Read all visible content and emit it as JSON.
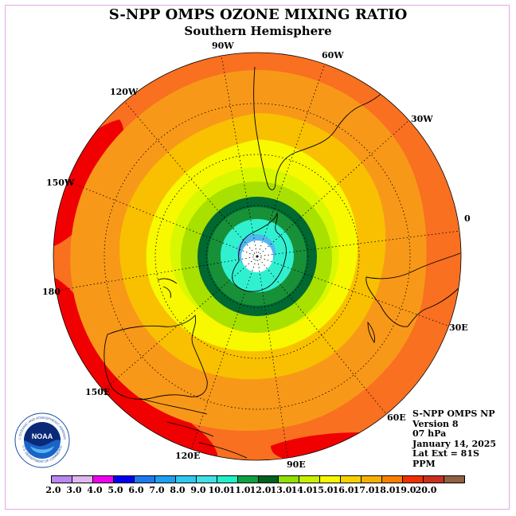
{
  "title": "S-NPP OMPS OZONE MIXING RATIO",
  "subtitle": "Southern Hemisphere",
  "longitude_labels": [
    "90W",
    "60W",
    "30W",
    "0",
    "30E",
    "60E",
    "90E",
    "120E",
    "150E",
    "180",
    "150W",
    "120W"
  ],
  "info": {
    "instrument": "S-NPP OMPS NP",
    "version": "Version 8",
    "level": "07 hPa",
    "date": "January 14, 2025",
    "lat_ext": "Lat Ext = 81S",
    "units": "PPM"
  },
  "colorbar": {
    "ticks": [
      "2.0",
      "3.0",
      "4.0",
      "5.0",
      "6.0",
      "7.0",
      "8.0",
      "9.0",
      "10.0",
      "11.0",
      "12.0",
      "13.0",
      "14.0",
      "15.0",
      "16.0",
      "17.0",
      "18.0",
      "19.0",
      "20.0"
    ],
    "colors": [
      "#b888f0",
      "#e0b8f0",
      "#f000f0",
      "#0000ee",
      "#1e78f0",
      "#1ea0f0",
      "#30c8f0",
      "#40e0e8",
      "#20f0c8",
      "#10a040",
      "#006020",
      "#90e000",
      "#c8f000",
      "#f8f800",
      "#f8d000",
      "#f8b000",
      "#f88000",
      "#f03000",
      "#c83020",
      "#906040"
    ]
  },
  "map_colors": {
    "outer": "#f87020",
    "orange": "#f89818",
    "yellow_orange": "#f8c000",
    "yellow": "#f8f800",
    "light_yellow_green": "#d8f800",
    "yellow_green": "#a8e000",
    "dark_green": "#006830",
    "green": "#189038",
    "aqua": "#30f0d0",
    "blue": "#50b8f0",
    "red": "#f00000"
  },
  "logo": {
    "text": "NOAA",
    "ring_text": "NATIONAL OCEANIC AND ATMOSPHERIC ADMINISTRATION",
    "ring_text_bottom": "U.S. DEPARTMENT OF COMMERCE"
  }
}
